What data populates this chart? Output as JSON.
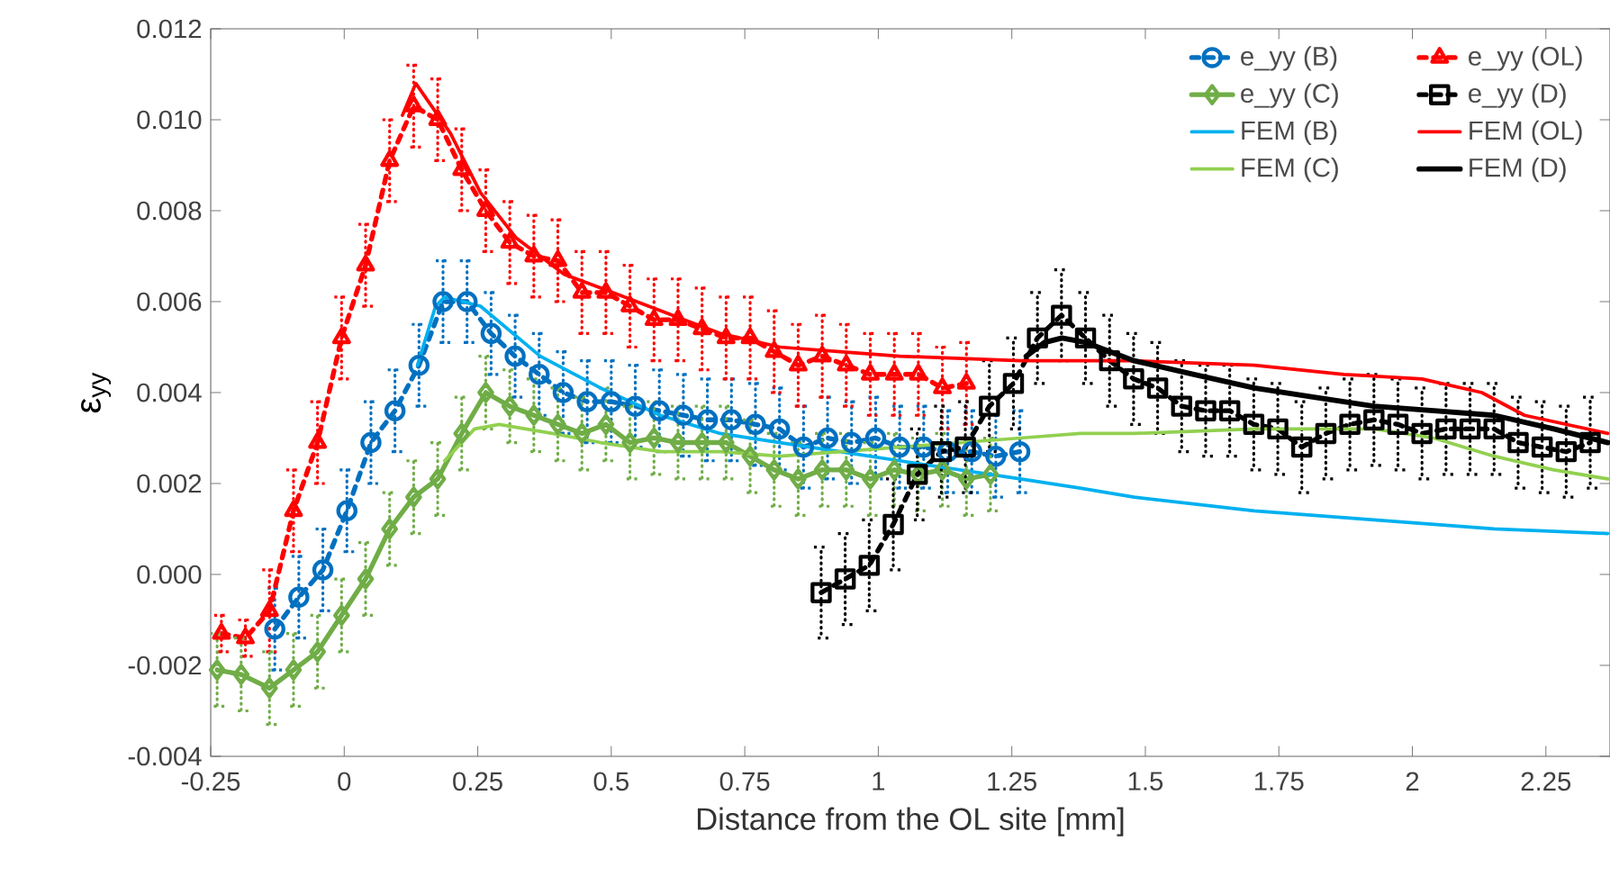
{
  "chart_data": {
    "type": "line",
    "xlabel": "Distance from the OL site [mm]",
    "ylabel": "ε$_{yy}$",
    "xlim": [
      -0.25,
      2.37
    ],
    "ylim": [
      -0.004,
      0.012
    ],
    "xticks": [
      -0.25,
      0,
      0.25,
      0.5,
      0.75,
      1,
      1.25,
      1.5,
      1.75,
      2,
      2.25
    ],
    "yticks": [
      {
        "value": -0.004,
        "label": "-0.004"
      },
      {
        "value": -0.002,
        "label": "-0.002"
      },
      {
        "value": 0,
        "label": "0.000"
      },
      {
        "value": 0.002,
        "label": "0.002"
      },
      {
        "value": 0.004,
        "label": "0.004"
      },
      {
        "value": 0.006,
        "label": "0.006"
      },
      {
        "value": 0.008,
        "label": "0.008"
      },
      {
        "value": 0.01,
        "label": "0.010"
      },
      {
        "value": 0.012,
        "label": "0.012"
      }
    ],
    "grid": false,
    "legend": "top right",
    "series": [
      {
        "name": "e_yy (B)",
        "color": "#0070c0",
        "marker": "circle",
        "line_style": "dashed",
        "x": [
          -0.13,
          -0.085,
          -0.04,
          0.005,
          0.05,
          0.095,
          0.14,
          0.185,
          0.23,
          0.275,
          0.32,
          0.365,
          0.41,
          0.455,
          0.5,
          0.545,
          0.59,
          0.635,
          0.68,
          0.725,
          0.77,
          0.815,
          0.86,
          0.905,
          0.95,
          0.995,
          1.04,
          1.085,
          1.13,
          1.175,
          1.22,
          1.265
        ],
        "values": [
          -0.0012,
          -0.0005,
          0.0001,
          0.0014,
          0.0029,
          0.0036,
          0.0046,
          0.006,
          0.006,
          0.0053,
          0.0048,
          0.0044,
          0.004,
          0.0038,
          0.0038,
          0.0037,
          0.0036,
          0.0035,
          0.0034,
          0.0034,
          0.0033,
          0.0032,
          0.0028,
          0.003,
          0.0029,
          0.003,
          0.0028,
          0.0028,
          0.0027,
          0.0027,
          0.0026,
          0.0027
        ],
        "errors": [
          0.0009,
          0.0009,
          0.0009,
          0.0009,
          0.0009,
          0.0009,
          0.0009,
          0.0009,
          0.0009,
          0.0009,
          0.0009,
          0.0009,
          0.0009,
          0.0009,
          0.0009,
          0.0009,
          0.0009,
          0.0009,
          0.0009,
          0.0009,
          0.0009,
          0.0009,
          0.0009,
          0.0009,
          0.0009,
          0.0009,
          0.0009,
          0.0009,
          0.0009,
          0.0009,
          0.0009,
          0.0009
        ]
      },
      {
        "name": "e_yy (OL)",
        "color": "#ff0000",
        "marker": "triangle",
        "line_style": "dashed",
        "x": [
          -0.23,
          -0.185,
          -0.14,
          -0.095,
          -0.05,
          -0.005,
          0.04,
          0.085,
          0.13,
          0.175,
          0.22,
          0.265,
          0.31,
          0.355,
          0.4,
          0.445,
          0.49,
          0.535,
          0.58,
          0.625,
          0.67,
          0.715,
          0.76,
          0.805,
          0.85,
          0.895,
          0.94,
          0.985,
          1.03,
          1.075,
          1.12,
          1.165
        ],
        "values": [
          -0.0013,
          -0.0014,
          -0.0008,
          0.0014,
          0.0029,
          0.0052,
          0.0068,
          0.0091,
          0.0103,
          0.01,
          0.0089,
          0.008,
          0.0073,
          0.007,
          0.0069,
          0.0062,
          0.0062,
          0.0059,
          0.0056,
          0.0056,
          0.0054,
          0.0052,
          0.0052,
          0.0049,
          0.0046,
          0.0048,
          0.0046,
          0.0044,
          0.0044,
          0.0044,
          0.0041,
          0.0042
        ],
        "errors": [
          0.0004,
          0.0004,
          0.0009,
          0.0009,
          0.0009,
          0.0009,
          0.0009,
          0.0009,
          0.0009,
          0.0009,
          0.0009,
          0.0009,
          0.0009,
          0.0009,
          0.0009,
          0.0009,
          0.0009,
          0.0009,
          0.0009,
          0.0009,
          0.0009,
          0.0009,
          0.0009,
          0.0009,
          0.0009,
          0.0009,
          0.0009,
          0.0009,
          0.0009,
          0.0009,
          0.0009,
          0.0009
        ]
      },
      {
        "name": "e_yy (C)",
        "color": "#70ad47",
        "marker": "diamond",
        "line_style": "solid",
        "x": [
          -0.238,
          -0.193,
          -0.14,
          -0.095,
          -0.05,
          -0.005,
          0.04,
          0.085,
          0.13,
          0.175,
          0.22,
          0.265,
          0.31,
          0.355,
          0.4,
          0.445,
          0.49,
          0.535,
          0.58,
          0.625,
          0.67,
          0.715,
          0.76,
          0.805,
          0.85,
          0.895,
          0.94,
          0.985,
          1.03,
          1.075,
          1.12,
          1.165,
          1.21
        ],
        "values": [
          -0.0021,
          -0.0022,
          -0.0025,
          -0.0021,
          -0.0017,
          -0.0009,
          -0.0001,
          0.001,
          0.0017,
          0.0021,
          0.0031,
          0.004,
          0.0037,
          0.0035,
          0.0033,
          0.0031,
          0.0033,
          0.0029,
          0.003,
          0.0029,
          0.0029,
          0.0029,
          0.0026,
          0.0023,
          0.0021,
          0.0023,
          0.0023,
          0.0021,
          0.0023,
          0.0022,
          0.0023,
          0.0021,
          0.0022
        ],
        "errors": [
          0.0008,
          0.0008,
          0.0008,
          0.0008,
          0.0008,
          0.0008,
          0.0008,
          0.0008,
          0.0008,
          0.0008,
          0.0008,
          0.0008,
          0.0008,
          0.0008,
          0.0008,
          0.0008,
          0.0008,
          0.0008,
          0.0008,
          0.0008,
          0.0008,
          0.0008,
          0.0008,
          0.0008,
          0.0008,
          0.0008,
          0.0008,
          0.0008,
          0.0008,
          0.0008,
          0.0008,
          0.0008,
          0.0008
        ]
      },
      {
        "name": "e_yy (D)",
        "color": "#000000",
        "marker": "square",
        "line_style": "dashed",
        "x": [
          0.893,
          0.938,
          0.983,
          1.028,
          1.073,
          1.118,
          1.163,
          1.208,
          1.253,
          1.298,
          1.343,
          1.388,
          1.433,
          1.478,
          1.523,
          1.568,
          1.613,
          1.658,
          1.703,
          1.748,
          1.793,
          1.838,
          1.883,
          1.928,
          1.973,
          2.018,
          2.063,
          2.108,
          2.153,
          2.198,
          2.243,
          2.288,
          2.333
        ],
        "values": [
          -0.0004,
          -0.0001,
          0.0002,
          0.0011,
          0.0022,
          0.0027,
          0.0028,
          0.0037,
          0.0042,
          0.0052,
          0.0057,
          0.0052,
          0.0047,
          0.0043,
          0.0041,
          0.0037,
          0.0036,
          0.0036,
          0.0033,
          0.0032,
          0.0028,
          0.0031,
          0.0033,
          0.0034,
          0.0033,
          0.0031,
          0.0032,
          0.0032,
          0.0032,
          0.0029,
          0.0028,
          0.0027,
          0.0029
        ],
        "errors": [
          0.001,
          0.001,
          0.001,
          0.001,
          0.001,
          0.001,
          0.001,
          0.001,
          0.001,
          0.001,
          0.001,
          0.001,
          0.001,
          0.001,
          0.001,
          0.001,
          0.001,
          0.001,
          0.001,
          0.001,
          0.001,
          0.001,
          0.001,
          0.001,
          0.001,
          0.001,
          0.001,
          0.001,
          0.001,
          0.001,
          0.001,
          0.001,
          0.001
        ]
      },
      {
        "name": "FEM (B)",
        "color": "#00b0f0",
        "marker": "none",
        "line_style": "solid",
        "x": [
          0.137,
          0.171,
          0.188,
          0.255,
          0.367,
          0.48,
          0.592,
          0.704,
          0.816,
          0.929,
          1.04,
          1.153,
          1.266,
          1.378,
          1.479,
          1.704,
          1.928,
          2.153,
          2.366
        ],
        "values": [
          0.0046,
          0.0059,
          0.0061,
          0.0059,
          0.0048,
          0.0041,
          0.0035,
          0.0031,
          0.0029,
          0.0027,
          0.0025,
          0.0023,
          0.0021,
          0.0019,
          0.0017,
          0.0014,
          0.0012,
          0.001,
          0.0009
        ]
      },
      {
        "name": "FEM (OL)",
        "color": "#ff0000",
        "marker": "none",
        "line_style": "solid",
        "x": [
          0.109,
          0.134,
          0.199,
          0.255,
          0.322,
          0.412,
          0.48,
          0.592,
          0.704,
          0.816,
          0.929,
          1.04,
          1.266,
          1.479,
          1.704,
          1.872,
          2.018,
          2.13,
          2.21,
          2.366
        ],
        "values": [
          0.0101,
          0.0108,
          0.0097,
          0.0084,
          0.0074,
          0.0066,
          0.0063,
          0.0058,
          0.0053,
          0.005,
          0.0049,
          0.0048,
          0.0047,
          0.0047,
          0.0046,
          0.0044,
          0.0043,
          0.004,
          0.0035,
          0.0031
        ]
      },
      {
        "name": "FEM (C)",
        "color": "#92d050",
        "marker": "none",
        "line_style": "solid",
        "x": [
          0.188,
          0.244,
          0.29,
          0.39,
          0.48,
          0.592,
          0.704,
          0.816,
          0.929,
          1.04,
          1.153,
          1.266,
          1.378,
          1.479,
          1.704,
          1.928,
          2.04,
          2.153,
          2.265,
          2.366
        ],
        "values": [
          0.0025,
          0.0032,
          0.0033,
          0.0031,
          0.0029,
          0.0027,
          0.0027,
          0.0026,
          0.0027,
          0.0028,
          0.0029,
          0.003,
          0.0031,
          0.0031,
          0.0032,
          0.0032,
          0.003,
          0.0026,
          0.0023,
          0.0021
        ]
      },
      {
        "name": "FEM (D)",
        "color": "#000000",
        "marker": "none",
        "line_style": "solid",
        "x": [
          1.277,
          1.311,
          1.344,
          1.389,
          1.479,
          1.591,
          1.704,
          1.816,
          1.928,
          2.04,
          2.153,
          2.265,
          2.366
        ],
        "values": [
          0.0048,
          0.0051,
          0.0052,
          0.0051,
          0.0047,
          0.0044,
          0.0041,
          0.0039,
          0.0037,
          0.0036,
          0.0035,
          0.0032,
          0.0029
        ]
      }
    ]
  }
}
